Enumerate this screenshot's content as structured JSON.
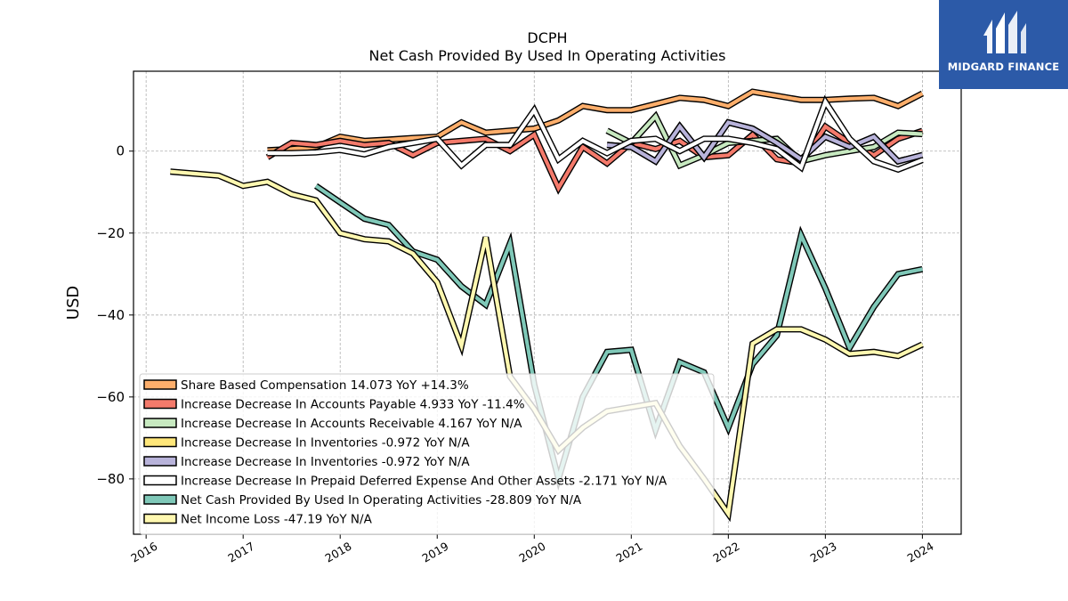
{
  "logo": {
    "text": "MIDGARD FINANCE"
  },
  "chart_data": {
    "type": "line",
    "title": "DCPH",
    "subtitle": "Net Cash Provided By Used In Operating Activities",
    "xlabel": "",
    "ylabel": "USD",
    "xlim": [
      2015.87,
      2024.4
    ],
    "ylim": [
      -93.5,
      19.5
    ],
    "xticks": [
      2016,
      2017,
      2018,
      2019,
      2020,
      2021,
      2022,
      2023,
      2024
    ],
    "xtick_labels": [
      "2016",
      "2017",
      "2018",
      "2019",
      "2020",
      "2021",
      "2022",
      "2023",
      "2024"
    ],
    "yticks": [
      0,
      -20,
      -40,
      -60,
      -80
    ],
    "ytick_labels": [
      "0",
      "−20",
      "−40",
      "−60",
      "−80"
    ],
    "grid": true,
    "legend_position": "lower-left",
    "series": [
      {
        "name": "Share Based Compensation",
        "legend": "Share Based Compensation  14.073 YoY +14.3%",
        "color": "#fdae6b",
        "x": [
          2017.25,
          2017.5,
          2017.75,
          2018.0,
          2018.25,
          2018.5,
          2018.75,
          2019.0,
          2019.25,
          2019.5,
          2019.75,
          2020.0,
          2020.25,
          2020.5,
          2020.75,
          2021.0,
          2021.25,
          2021.5,
          2021.75,
          2022.0,
          2022.25,
          2022.5,
          2022.75,
          2023.0,
          2023.25,
          2023.5,
          2023.75,
          2024.0
        ],
        "y": [
          0.2,
          0.5,
          1.0,
          3.5,
          2.5,
          2.8,
          3.2,
          3.5,
          7.0,
          4.5,
          5.0,
          5.5,
          7.5,
          11.0,
          10.0,
          10.0,
          11.5,
          13.0,
          12.5,
          11.0,
          14.5,
          13.5,
          12.5,
          12.5,
          12.8,
          13.0,
          11.0,
          14.073
        ]
      },
      {
        "name": "Increase Decrease In Accounts Payable",
        "legend": "Increase Decrease In Accounts Payable  4.933 YoY -11.4%",
        "color": "#f47a6b",
        "x": [
          2017.25,
          2017.5,
          2017.75,
          2018.0,
          2018.25,
          2018.5,
          2018.75,
          2019.0,
          2019.25,
          2019.5,
          2019.75,
          2020.0,
          2020.25,
          2020.5,
          2020.75,
          2021.0,
          2021.25,
          2021.5,
          2021.75,
          2022.0,
          2022.25,
          2022.5,
          2022.75,
          2023.0,
          2023.25,
          2023.5,
          2023.75,
          2024.0
        ],
        "y": [
          -1.5,
          2.0,
          1.5,
          2.5,
          1.5,
          2.0,
          -1.0,
          2.0,
          2.5,
          3.0,
          0.0,
          4.0,
          -9.0,
          1.0,
          -3.0,
          2.0,
          0.5,
          2.5,
          -1.5,
          -1.0,
          4.0,
          -2.0,
          -3.0,
          6.0,
          2.0,
          -1.0,
          3.0,
          4.933
        ]
      },
      {
        "name": "Increase Decrease In Accounts Receivable",
        "legend": "Increase Decrease In Accounts Receivable  4.167 YoY N/A",
        "color": "#c7e9c0",
        "x": [
          2020.75,
          2021.0,
          2021.25,
          2021.5,
          2021.75,
          2022.0,
          2022.25,
          2022.5,
          2022.75,
          2023.0,
          2023.25,
          2023.5,
          2023.75,
          2024.0
        ],
        "y": [
          5.0,
          2.0,
          8.5,
          -3.5,
          -1.0,
          2.0,
          2.5,
          3.0,
          -2.5,
          -1.0,
          0.0,
          1.0,
          4.5,
          4.167
        ]
      },
      {
        "name": "Increase Decrease In Inventories",
        "legend": "Increase Decrease In Inventories  -0.972 YoY N/A",
        "color": "#ffe77a",
        "x": [
          2020.75,
          2021.0,
          2021.25,
          2021.5,
          2021.75,
          2022.0,
          2022.25,
          2022.5,
          2022.75,
          2023.0,
          2023.25,
          2023.5,
          2023.75,
          2024.0
        ],
        "y": [
          1.5,
          1.0,
          -2.5,
          6.0,
          -1.5,
          7.0,
          5.5,
          2.0,
          -2.0,
          3.5,
          1.0,
          3.5,
          -2.5,
          -0.972
        ]
      },
      {
        "name": "Increase Decrease In Inventories",
        "legend": "Increase Decrease In Inventories  -0.972 YoY N/A",
        "color": "#b8b3da",
        "x": [
          2020.75,
          2021.0,
          2021.25,
          2021.5,
          2021.75,
          2022.0,
          2022.25,
          2022.5,
          2022.75,
          2023.0,
          2023.25,
          2023.5,
          2023.75,
          2024.0
        ],
        "y": [
          1.5,
          1.0,
          -2.5,
          6.0,
          -1.5,
          7.0,
          5.5,
          2.0,
          -2.0,
          3.5,
          1.0,
          3.5,
          -2.5,
          -0.972
        ]
      },
      {
        "name": "Increase Decrease In Prepaid Deferred Expense And Other Assets",
        "legend": "Increase Decrease In Prepaid Deferred Expense And Other Assets  -2.171 YoY N/A",
        "color": "#ffffff",
        "x": [
          2017.25,
          2017.5,
          2017.75,
          2018.0,
          2018.25,
          2018.5,
          2018.75,
          2019.0,
          2019.25,
          2019.5,
          2019.75,
          2020.0,
          2020.25,
          2020.5,
          2020.75,
          2021.0,
          2021.25,
          2021.5,
          2021.75,
          2022.0,
          2022.25,
          2022.5,
          2022.75,
          2023.0,
          2023.25,
          2023.5,
          2023.75,
          2024.0
        ],
        "y": [
          -0.5,
          -0.5,
          -0.3,
          0.3,
          -0.8,
          1.0,
          2.0,
          3.0,
          -3.5,
          1.5,
          1.5,
          10.0,
          -2.0,
          2.5,
          -0.5,
          2.5,
          3.0,
          0.0,
          3.0,
          3.0,
          2.0,
          0.5,
          -4.0,
          12.0,
          3.0,
          -2.5,
          -4.5,
          -2.171
        ]
      },
      {
        "name": "Net Cash Provided By Used In Operating Activities",
        "legend": "Net Cash Provided By Used In Operating Activities  -28.809 YoY N/A",
        "color": "#7fc8b8",
        "x": [
          2017.75,
          2018.0,
          2018.25,
          2018.5,
          2018.75,
          2019.0,
          2019.25,
          2019.5,
          2019.75,
          2020.0,
          2020.25,
          2020.5,
          2020.75,
          2021.0,
          2021.25,
          2021.5,
          2021.75,
          2022.0,
          2022.25,
          2022.5,
          2022.75,
          2023.0,
          2023.25,
          2023.5,
          2023.75,
          2024.0
        ],
        "y": [
          -8.5,
          -12.5,
          -16.5,
          -18.0,
          -24.5,
          -26.5,
          -33.0,
          -37.5,
          -22.5,
          -57.0,
          -80.0,
          -60.0,
          -49.0,
          -48.5,
          -68.0,
          -51.5,
          -54.0,
          -67.5,
          -52.0,
          -45.0,
          -20.5,
          -33.5,
          -48.0,
          -38.0,
          -30.0,
          -28.809
        ]
      },
      {
        "name": "Net Income Loss",
        "legend": "Net Income Loss  -47.19 YoY N/A",
        "color": "#fff8b0",
        "x": [
          2016.25,
          2016.5,
          2016.75,
          2017.0,
          2017.25,
          2017.5,
          2017.75,
          2018.0,
          2018.25,
          2018.5,
          2018.75,
          2019.0,
          2019.25,
          2019.5,
          2019.75,
          2020.0,
          2020.25,
          2020.5,
          2020.75,
          2021.0,
          2021.25,
          2021.5,
          2021.75,
          2022.0,
          2022.25,
          2022.5,
          2022.75,
          2023.0,
          2023.25,
          2023.5,
          2023.75,
          2024.0
        ],
        "y": [
          -5.0,
          -5.5,
          -6.0,
          -8.5,
          -7.5,
          -10.5,
          -12.0,
          -20.0,
          -21.5,
          -22.0,
          -25.0,
          -32.0,
          -47.5,
          -21.0,
          -55.0,
          -63.0,
          -73.0,
          -67.5,
          -63.5,
          -62.5,
          -61.5,
          -72.0,
          -80.0,
          -88.5,
          -47.0,
          -43.5,
          -43.5,
          -46.0,
          -49.5,
          -49.0,
          -50.0,
          -47.19
        ]
      }
    ]
  }
}
